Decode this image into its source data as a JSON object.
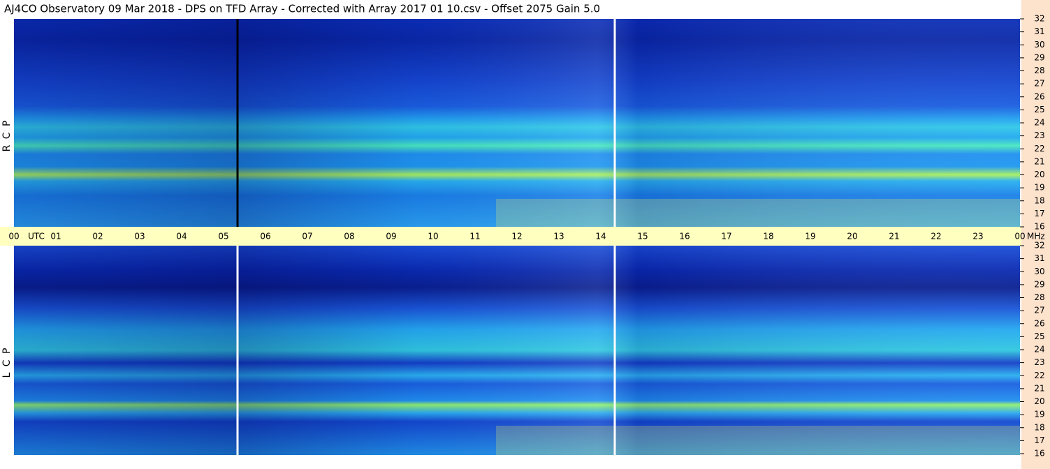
{
  "title": "AJ4CO Observatory  09 Mar 2018  -  DPS on TFD Array  -  Corrected with Array 2017 01 10.csv  -  Offset 2075  Gain 5.0",
  "time_axis": {
    "start_label": "00",
    "unit": "UTC",
    "hours": [
      "01",
      "02",
      "03",
      "04",
      "05",
      "06",
      "07",
      "08",
      "09",
      "10",
      "11",
      "12",
      "13",
      "14",
      "15",
      "16",
      "17",
      "18",
      "19",
      "20",
      "21",
      "22",
      "23"
    ],
    "end_label": "00",
    "freq_unit": "MHz"
  },
  "freq_ticks": [
    16,
    17,
    18,
    19,
    20,
    21,
    22,
    23,
    24,
    25,
    26,
    27,
    28,
    29,
    30,
    31,
    32
  ],
  "panels": [
    {
      "label": "R  C  P"
    },
    {
      "label": "L  C  P"
    }
  ]
}
